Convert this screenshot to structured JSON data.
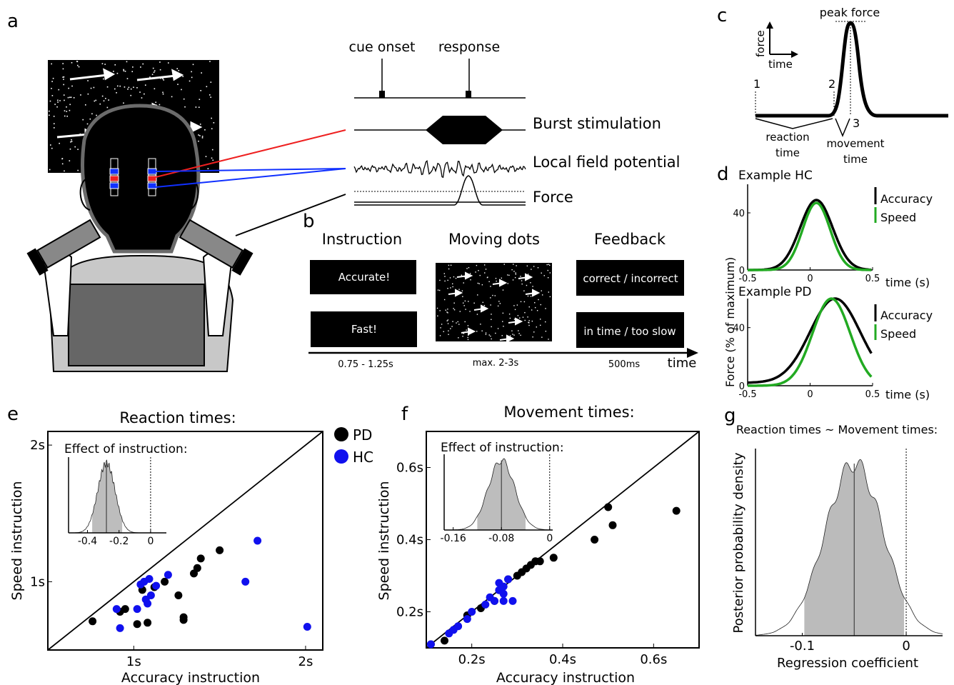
{
  "panel_labels": {
    "a": "a",
    "b": "b",
    "c": "c",
    "d": "d",
    "e": "e",
    "f": "f",
    "g": "g"
  },
  "panel_a": {
    "cue_onset": "cue onset",
    "response": "response",
    "burst": "Burst stimulation",
    "lfp": "Local field potential",
    "force": "Force"
  },
  "panel_b": {
    "headers": [
      "Instruction",
      "Moving dots",
      "Feedback"
    ],
    "instr_accurate": "Accurate!",
    "instr_fast": "Fast!",
    "fb_correct": "correct / incorrect",
    "fb_time": "in time / too slow",
    "dur_instruction": "0.75 - 1.25s",
    "dur_dots": "max. 2-3s",
    "dur_feedback": "500ms",
    "time_label": "time"
  },
  "panel_c": {
    "peak_force": "peak force",
    "force_axis": "force",
    "time_axis": "time",
    "marker_1": "1",
    "marker_2": "2",
    "marker_3": "3",
    "reaction_time": "reaction\ntime",
    "movement_time": "movement\ntime"
  },
  "panel_d": {
    "ylabel": "Force (% of maximum)",
    "hc_title": "Example HC",
    "pd_title": "Example PD",
    "legend_accuracy": "Accuracy",
    "legend_speed": "Speed",
    "xlabel": "time (s)",
    "ticks_x": [
      "-0.5",
      "0",
      "0.5"
    ],
    "ticks_y": [
      "0",
      "40"
    ],
    "colors": {
      "accuracy": "#000000",
      "speed": "#22aa22"
    }
  },
  "chart_data": [
    {
      "type": "scatter",
      "id": "e",
      "title": "Reaction times:",
      "xlabel": "Accuracy instruction",
      "ylabel": "Speed instruction",
      "xticks": [
        "1s",
        "2s"
      ],
      "yticks": [
        "1s",
        "2s"
      ],
      "xlim": [
        0.5,
        2.1
      ],
      "ylim": [
        0.5,
        2.1
      ],
      "legend": [
        {
          "name": "PD",
          "color": "#000000"
        },
        {
          "name": "HC",
          "color": "#1010ee"
        }
      ],
      "series": [
        {
          "name": "PD",
          "color": "#000000",
          "points": [
            [
              0.76,
              0.71
            ],
            [
              0.92,
              0.78
            ],
            [
              0.95,
              0.8
            ],
            [
              1.02,
              0.69
            ],
            [
              1.08,
              0.7
            ],
            [
              1.05,
              0.94
            ],
            [
              1.12,
              0.96
            ],
            [
              1.18,
              1.0
            ],
            [
              1.26,
              0.9
            ],
            [
              1.29,
              0.72
            ],
            [
              1.29,
              0.74
            ],
            [
              1.35,
              1.06
            ],
            [
              1.37,
              1.1
            ],
            [
              1.39,
              1.17
            ],
            [
              1.5,
              1.23
            ]
          ]
        },
        {
          "name": "HC",
          "color": "#1010ee",
          "points": [
            [
              0.9,
              0.8
            ],
            [
              0.92,
              0.66
            ],
            [
              1.02,
              0.8
            ],
            [
              1.04,
              0.98
            ],
            [
              1.06,
              1.0
            ],
            [
              1.07,
              0.87
            ],
            [
              1.08,
              0.84
            ],
            [
              1.09,
              1.02
            ],
            [
              1.1,
              0.9
            ],
            [
              1.13,
              0.97
            ],
            [
              1.2,
              1.05
            ],
            [
              1.65,
              1.0
            ],
            [
              1.72,
              1.3
            ],
            [
              2.01,
              0.67
            ]
          ]
        }
      ],
      "inset": {
        "title": "Effect of instruction:",
        "xticks": [
          "-0.4",
          "-0.2",
          "0"
        ],
        "xlim": [
          -0.52,
          0.1
        ],
        "mean": -0.28,
        "sd": 0.055,
        "ci": [
          -0.37,
          -0.18
        ]
      }
    },
    {
      "type": "scatter",
      "id": "f",
      "title": "Movement times:",
      "xlabel": "Accuracy instruction",
      "ylabel": "Speed instruction",
      "xticks": [
        "0.2s",
        "0.4s",
        "0.6s"
      ],
      "yticks": [
        "0.2s",
        "0.4s",
        "0.6s"
      ],
      "xlim": [
        0.1,
        0.7
      ],
      "ylim": [
        0.1,
        0.7
      ],
      "series": [
        {
          "name": "PD",
          "color": "#000000",
          "points": [
            [
              0.11,
              0.11
            ],
            [
              0.14,
              0.12
            ],
            [
              0.19,
              0.19
            ],
            [
              0.22,
              0.21
            ],
            [
              0.25,
              0.23
            ],
            [
              0.28,
              0.29
            ],
            [
              0.3,
              0.3
            ],
            [
              0.31,
              0.31
            ],
            [
              0.32,
              0.32
            ],
            [
              0.33,
              0.33
            ],
            [
              0.34,
              0.34
            ],
            [
              0.35,
              0.34
            ],
            [
              0.38,
              0.35
            ],
            [
              0.47,
              0.4
            ],
            [
              0.5,
              0.49
            ],
            [
              0.51,
              0.44
            ],
            [
              0.65,
              0.48
            ]
          ]
        },
        {
          "name": "HC",
          "color": "#1010ee",
          "points": [
            [
              0.11,
              0.11
            ],
            [
              0.15,
              0.14
            ],
            [
              0.16,
              0.15
            ],
            [
              0.17,
              0.16
            ],
            [
              0.19,
              0.18
            ],
            [
              0.2,
              0.2
            ],
            [
              0.23,
              0.22
            ],
            [
              0.24,
              0.24
            ],
            [
              0.25,
              0.23
            ],
            [
              0.26,
              0.26
            ],
            [
              0.26,
              0.28
            ],
            [
              0.27,
              0.25
            ],
            [
              0.27,
              0.27
            ],
            [
              0.27,
              0.23
            ],
            [
              0.28,
              0.29
            ],
            [
              0.29,
              0.23
            ]
          ]
        }
      ],
      "inset": {
        "title": "Effect of instruction:",
        "xticks": [
          "-0.16",
          "-0.08",
          "0"
        ],
        "xlim": [
          -0.175,
          0.005
        ],
        "mean": -0.08,
        "sd": 0.022,
        "ci": [
          -0.12,
          -0.04
        ]
      }
    },
    {
      "type": "area",
      "id": "g",
      "title": "Reaction times ~ Movement times:",
      "xlabel": "Regression coefficient",
      "ylabel": "Posterior probability density",
      "xticks": [
        "-0.1",
        "0"
      ],
      "xlim": [
        -0.145,
        0.035
      ],
      "mean": -0.05,
      "sd": 0.028,
      "ci": [
        -0.098,
        -0.002
      ]
    }
  ]
}
